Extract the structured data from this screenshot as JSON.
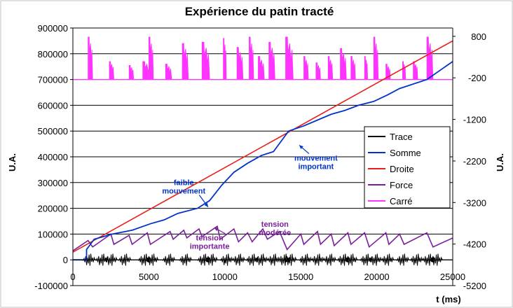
{
  "chart_data": {
    "type": "line",
    "title": "Expérience du patin tracté",
    "xlabel": "t (ms)",
    "ylabel": "U.A.",
    "y2label": "U.A.",
    "xlim": [
      0,
      25000
    ],
    "ylim": [
      -100000,
      900000
    ],
    "y2lim": [
      -5200,
      1000
    ],
    "x_ticks": [
      "0",
      "5000",
      "10000",
      "15000",
      "20000",
      "25000"
    ],
    "y_ticks": [
      "-100000",
      "0",
      "100000",
      "200000",
      "300000",
      "400000",
      "500000",
      "600000",
      "700000",
      "800000",
      "900000"
    ],
    "y2_ticks": [
      "800",
      "-200",
      "-1200",
      "-2200",
      "-3200",
      "-4200",
      "-5200"
    ],
    "grid": "horizontal",
    "legend_position": "right",
    "colors": {
      "Trace": "#000000",
      "Somme": "#0033cc",
      "Droite": "#e8201a",
      "Force": "#7a1f9c",
      "Carré": "#ff33ff"
    },
    "series": [
      {
        "name": "Trace",
        "axis": "left",
        "bursts_x": [
          1050,
          1900,
          2500,
          3400,
          4700,
          5200,
          6300,
          7400,
          8600,
          9100,
          10100,
          10900,
          11800,
          12400,
          13200,
          13900,
          14300,
          15300,
          16100,
          16900,
          17800,
          18300,
          19300,
          19900,
          20700,
          21700,
          22600,
          23400,
          23900
        ],
        "baseline": 0
      },
      {
        "name": "Somme",
        "axis": "left",
        "x": [
          0,
          900,
          900,
          1400,
          1400,
          2600,
          2600,
          3900,
          3900,
          5100,
          5100,
          6000,
          6000,
          6900,
          6900,
          8200,
          8200,
          9000,
          9000,
          9800,
          9800,
          10600,
          10600,
          11500,
          11500,
          12400,
          12400,
          13200,
          13200,
          14200,
          14200,
          15200,
          15200,
          16200,
          16200,
          17000,
          17000,
          17900,
          17900,
          18800,
          18800,
          19800,
          19800,
          20700,
          20700,
          21500,
          21500,
          23300,
          23300,
          25000
        ],
        "y": [
          0,
          0,
          40000,
          80000,
          80000,
          100000,
          100000,
          115000,
          115000,
          140000,
          140000,
          155000,
          155000,
          180000,
          180000,
          200000,
          200000,
          230000,
          230000,
          290000,
          290000,
          340000,
          340000,
          375000,
          375000,
          405000,
          405000,
          420000,
          420000,
          500000,
          500000,
          520000,
          520000,
          545000,
          545000,
          565000,
          565000,
          580000,
          580000,
          600000,
          600000,
          615000,
          615000,
          640000,
          640000,
          665000,
          665000,
          700000,
          700000,
          770000
        ]
      },
      {
        "name": "Droite",
        "axis": "left",
        "x": [
          0,
          25000
        ],
        "y": [
          30000,
          850000
        ]
      },
      {
        "name": "Force",
        "axis": "left",
        "x": [
          0,
          1000,
          1300,
          2500,
          2700,
          3700,
          3900,
          4900,
          5100,
          6400,
          6600,
          7300,
          7500,
          8300,
          8500,
          9500,
          9700,
          10600,
          10900,
          11500,
          11800,
          12500,
          12800,
          13600,
          14100,
          15000,
          15200,
          16100,
          16300,
          17000,
          17200,
          18100,
          18300,
          19200,
          19500,
          20600,
          20800,
          21500,
          21800,
          23300,
          23700,
          25000
        ],
        "y": [
          35000,
          75000,
          50000,
          100000,
          60000,
          95000,
          60000,
          105000,
          60000,
          110000,
          80000,
          115000,
          85000,
          120000,
          90000,
          130000,
          80000,
          120000,
          70000,
          105000,
          70000,
          120000,
          80000,
          110000,
          40000,
          100000,
          60000,
          110000,
          60000,
          100000,
          55000,
          105000,
          60000,
          105000,
          50000,
          105000,
          60000,
          100000,
          60000,
          105000,
          50000,
          85000
        ]
      },
      {
        "name": "Carré",
        "axis": "left",
        "baseline": 700000,
        "bursts": [
          {
            "x": [
              1000,
              1300
            ],
            "h": 865000
          },
          {
            "x": [
              2400,
              2700
            ],
            "h": 770000
          },
          {
            "x": [
              3700,
              4000
            ],
            "h": 755000
          },
          {
            "x": [
              4600,
              5100
            ],
            "h": 770000
          },
          {
            "x": [
              5000,
              5300
            ],
            "h": 865000
          },
          {
            "x": [
              6100,
              6500
            ],
            "h": 760000
          },
          {
            "x": [
              7200,
              7600
            ],
            "h": 840000
          },
          {
            "x": [
              8500,
              9000
            ],
            "h": 845000
          },
          {
            "x": [
              9900,
              10100
            ],
            "h": 860000
          },
          {
            "x": [
              10800,
              11200
            ],
            "h": 825000
          },
          {
            "x": [
              11600,
              11900
            ],
            "h": 865000
          },
          {
            "x": [
              12200,
              12600
            ],
            "h": 790000
          },
          {
            "x": [
              12900,
              13300
            ],
            "h": 845000
          },
          {
            "x": [
              14000,
              14500
            ],
            "h": 865000
          },
          {
            "x": [
              15200,
              15500
            ],
            "h": 790000
          },
          {
            "x": [
              16000,
              16300
            ],
            "h": 765000
          },
          {
            "x": [
              16800,
              17100
            ],
            "h": 790000
          },
          {
            "x": [
              17600,
              18000
            ],
            "h": 820000
          },
          {
            "x": [
              18300,
              18600
            ],
            "h": 790000
          },
          {
            "x": [
              19200,
              19400
            ],
            "h": 790000
          },
          {
            "x": [
              19800,
              20100
            ],
            "h": 865000
          },
          {
            "x": [
              20600,
              20900
            ],
            "h": 760000
          },
          {
            "x": [
              21700,
              21900
            ],
            "h": 770000
          },
          {
            "x": [
              22400,
              22700
            ],
            "h": 770000
          },
          {
            "x": [
              23300,
              23700
            ],
            "h": 865000
          }
        ]
      }
    ],
    "legend": [
      "Trace",
      "Somme",
      "Droite",
      "Force",
      "Carré"
    ],
    "annotations": [
      {
        "lines": [
          "faible",
          "mouvement"
        ],
        "color": "#0033cc",
        "x": 7300,
        "y": 290000,
        "arrow_to": [
          8900,
          205000
        ]
      },
      {
        "lines": [
          "mouvement",
          "important"
        ],
        "color": "#0033cc",
        "x": 16000,
        "y": 385000,
        "arrow_to": [
          14900,
          445000
        ]
      },
      {
        "lines": [
          "tension",
          "importante"
        ],
        "color": "#7a1f9c",
        "x": 9000,
        "y": 75000,
        "arrow_to": [
          9300,
          125000
        ]
      },
      {
        "lines": [
          "tension",
          "modérée"
        ],
        "color": "#7a1f9c",
        "x": 13300,
        "y": 128000,
        "arrow_to": null
      }
    ]
  }
}
